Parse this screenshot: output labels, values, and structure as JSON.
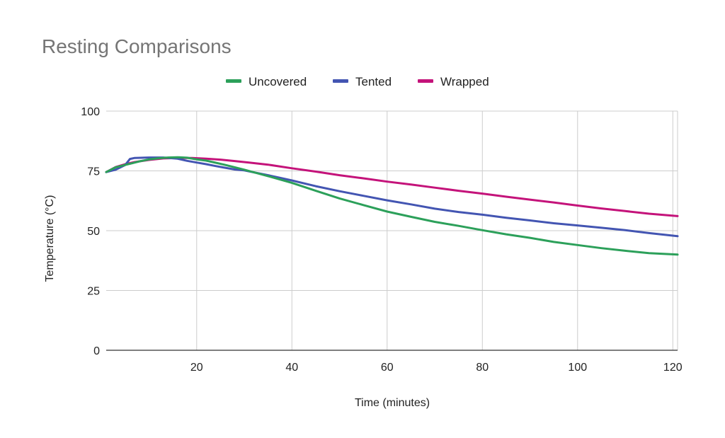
{
  "chart_data": {
    "type": "line",
    "title": "Resting Comparisons",
    "xlabel": "Time (minutes)",
    "ylabel": "Temperature (°C)",
    "xlim": [
      1,
      121
    ],
    "ylim": [
      0,
      100
    ],
    "x_ticks": [
      20,
      40,
      60,
      80,
      100,
      120
    ],
    "y_ticks": [
      0,
      25,
      50,
      75,
      100
    ],
    "grid": true,
    "legend_position": "top",
    "series": [
      {
        "name": "Uncovered",
        "color": "#2ca05a",
        "x": [
          1,
          3,
          5,
          6,
          8,
          10,
          12,
          14,
          16,
          18,
          20,
          22,
          24,
          26,
          28,
          30,
          35,
          40,
          45,
          50,
          55,
          60,
          65,
          70,
          75,
          80,
          85,
          90,
          95,
          100,
          105,
          110,
          115,
          121
        ],
        "y": [
          74.5,
          76.5,
          77.5,
          78,
          79,
          79.8,
          80.3,
          80.6,
          80.7,
          80.5,
          79.8,
          79.3,
          78.4,
          77.5,
          76.5,
          75.5,
          72.8,
          70,
          66.7,
          63.5,
          60.7,
          58,
          55.8,
          53.7,
          52,
          50.2,
          48.5,
          47,
          45.3,
          44,
          42.7,
          41.6,
          40.6,
          40
        ]
      },
      {
        "name": "Tented",
        "color": "#4355b2",
        "x": [
          1,
          3,
          5,
          6,
          7,
          10,
          13,
          16,
          18,
          20,
          22,
          24,
          26,
          28,
          30,
          35,
          40,
          45,
          50,
          55,
          60,
          65,
          70,
          75,
          80,
          85,
          90,
          95,
          100,
          105,
          110,
          115,
          121
        ],
        "y": [
          74.5,
          75.5,
          77.5,
          80,
          80.4,
          80.6,
          80.6,
          80.1,
          79.2,
          78.5,
          77.8,
          77,
          76.3,
          75.6,
          75.2,
          73.2,
          71,
          68.6,
          66.5,
          64.6,
          62.7,
          61,
          59.2,
          57.8,
          56.7,
          55.4,
          54.3,
          53.1,
          52.2,
          51.2,
          50.2,
          49,
          47.7
        ]
      },
      {
        "name": "Wrapped",
        "color": "#c4137a",
        "x": [
          1,
          3,
          5,
          7,
          10,
          13,
          16,
          19,
          22,
          25,
          28,
          31,
          35,
          40,
          45,
          50,
          55,
          60,
          65,
          70,
          75,
          80,
          85,
          90,
          95,
          100,
          105,
          110,
          115,
          121
        ],
        "y": [
          74.5,
          76.6,
          77.8,
          78.7,
          79.6,
          80.2,
          80.4,
          80.4,
          80.1,
          79.7,
          79.1,
          78.5,
          77.6,
          76.1,
          74.7,
          73.2,
          71.9,
          70.5,
          69.3,
          68,
          66.7,
          65.5,
          64.2,
          63,
          61.8,
          60.5,
          59.3,
          58.2,
          57.1,
          56.1
        ]
      }
    ]
  }
}
